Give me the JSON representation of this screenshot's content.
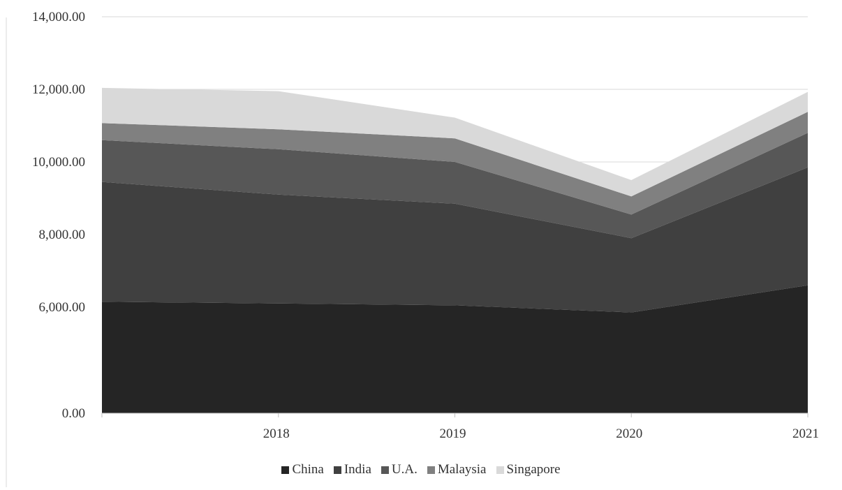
{
  "chart_data": {
    "type": "area",
    "stacked": true,
    "x": [
      "",
      "2018",
      "2019",
      "2020",
      "2021"
    ],
    "series": [
      {
        "name": "China",
        "color": "#252525",
        "values": [
          6150,
          6100,
          6050,
          5700,
          6600
        ]
      },
      {
        "name": "India",
        "color": "#404040",
        "values": [
          3300,
          3000,
          2800,
          2200,
          3250
        ]
      },
      {
        "name": "U.A.",
        "color": "#575757",
        "values": [
          1150,
          1250,
          1150,
          650,
          950
        ]
      },
      {
        "name": "Malaysia",
        "color": "#808080",
        "values": [
          470,
          550,
          650,
          500,
          580
        ]
      },
      {
        "name": "Singapore",
        "color": "#d9d9d9",
        "values": [
          970,
          1050,
          570,
          450,
          550
        ]
      }
    ],
    "yticks": [
      {
        "value": 0,
        "label": "0.00"
      },
      {
        "value": 6000,
        "label": "6,000.00"
      },
      {
        "value": 8000,
        "label": "8,000.00"
      },
      {
        "value": 10000,
        "label": "10,000.00"
      },
      {
        "value": 12000,
        "label": "12,000.00"
      },
      {
        "value": 14000,
        "label": "14,000.00"
      }
    ],
    "ylim": [
      0,
      14000
    ],
    "title": "",
    "xlabel": "",
    "ylabel": "",
    "grid": true,
    "legend_position": "bottom"
  }
}
